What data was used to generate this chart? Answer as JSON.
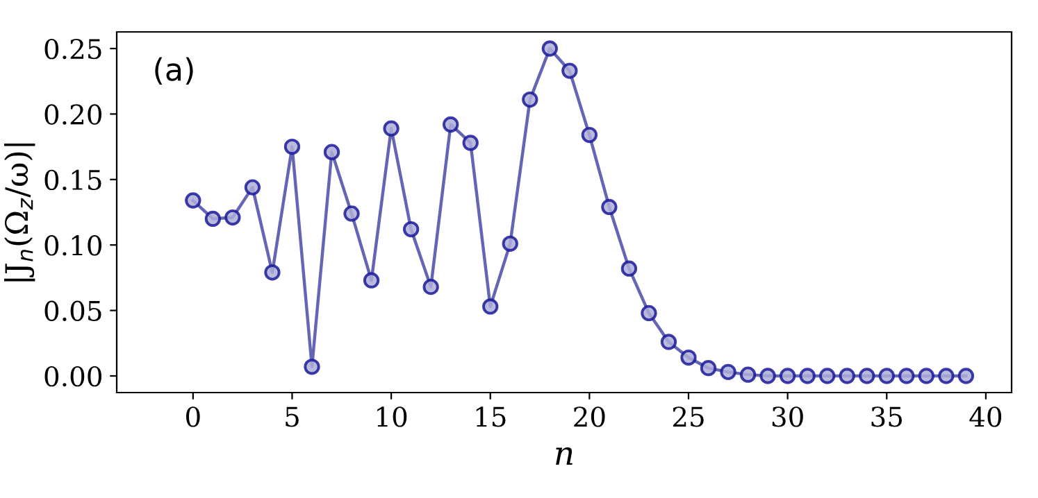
{
  "chart_data": {
    "type": "line",
    "xlabel": "n",
    "ylabel": "|J$_{n}$(Ω$_{z}$/ω)|",
    "annotations": [
      "(a)"
    ],
    "x": [
      0,
      1,
      2,
      3,
      4,
      5,
      6,
      7,
      8,
      9,
      10,
      11,
      12,
      13,
      14,
      15,
      16,
      17,
      18,
      19,
      20,
      21,
      22,
      23,
      24,
      25,
      26,
      27,
      28,
      29,
      30,
      31,
      32,
      33,
      34,
      35,
      36,
      37,
      38,
      39
    ],
    "series": [
      {
        "color": "#4a4aa8",
        "values": [
          0.134,
          0.12,
          0.121,
          0.144,
          0.079,
          0.175,
          0.007,
          0.171,
          0.124,
          0.073,
          0.189,
          0.112,
          0.068,
          0.192,
          0.178,
          0.053,
          0.101,
          0.211,
          0.25,
          0.233,
          0.184,
          0.129,
          0.082,
          0.048,
          0.026,
          0.014,
          0.006,
          0.003,
          0.001,
          0.0,
          0.0,
          0.0,
          0.0,
          0.0,
          0.0,
          0.0,
          0.0,
          0.0,
          0.0,
          0.0
        ]
      }
    ],
    "xlim": [
      -3.85,
      41.3
    ],
    "ylim": [
      -0.0127,
      0.2627
    ],
    "xticks": [
      0,
      5,
      10,
      15,
      20,
      25,
      30,
      35,
      40
    ],
    "yticks": [
      {
        "value": 0,
        "label": "0.00"
      },
      {
        "value": 0.05,
        "label": "0.05"
      },
      {
        "value": 0.1,
        "label": "0.10"
      },
      {
        "value": 0.15,
        "label": "0.15"
      },
      {
        "value": 0.2,
        "label": "0.20"
      },
      {
        "value": 0.25,
        "label": "0.25"
      }
    ],
    "marker": "circle",
    "line_style": "solid",
    "grid": false
  }
}
